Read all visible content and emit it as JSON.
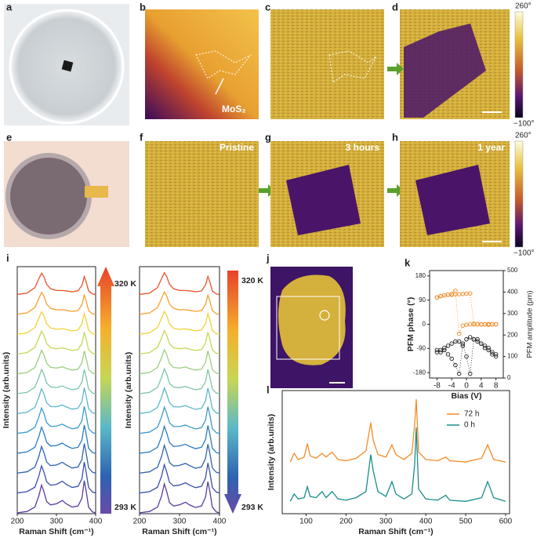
{
  "figure": {
    "panel_labels": [
      "a",
      "b",
      "c",
      "d",
      "e",
      "f",
      "g",
      "h",
      "i",
      "j",
      "k",
      "l"
    ],
    "b_label": "MoS₂",
    "colorbar_d": {
      "max": "260°",
      "min": "−100°"
    },
    "colorbar_h": {
      "max": "260°",
      "min": "−100°"
    },
    "f_label": "Pristine",
    "g_label": "3 hours",
    "h_label": "1 year"
  },
  "chart_data": [
    {
      "type": "line",
      "xlabel": "Raman Shift (cm⁻¹)",
      "ylabel": "Intensity (arb.units)",
      "colorbar": {
        "top": "320 K",
        "bottom": "293 K"
      },
      "x": [
        200,
        225,
        245,
        255,
        262,
        268,
        275,
        285,
        300,
        315,
        325,
        340,
        355,
        365,
        371,
        376,
        382,
        392,
        400
      ],
      "xlim": [
        200,
        400
      ],
      "xticks": [
        200,
        300,
        400
      ],
      "ylim": [
        0,
        11.2
      ],
      "series": [
        {
          "color": "#5a3c9e",
          "values": [
            0.04,
            0.1,
            0.3,
            0.8,
            1.3,
            1.0,
            0.55,
            0.4,
            0.45,
            0.6,
            0.45,
            0.3,
            0.35,
            0.7,
            1.5,
            1.0,
            0.3,
            0.08,
            0.04
          ]
        },
        {
          "color": "#3b4fa8",
          "values": [
            0.94,
            1.0,
            1.2,
            1.7,
            2.17,
            1.89,
            1.45,
            1.29,
            1.33,
            1.47,
            1.33,
            1.19,
            1.24,
            1.58,
            2.34,
            1.86,
            1.19,
            0.98,
            0.94
          ]
        },
        {
          "color": "#2e62b0",
          "values": [
            1.84,
            1.9,
            2.11,
            2.59,
            3.05,
            2.77,
            2.34,
            2.18,
            2.21,
            2.33,
            2.21,
            2.07,
            2.12,
            2.46,
            3.18,
            2.73,
            2.08,
            1.88,
            1.84
          ]
        },
        {
          "color": "#2a7bbf",
          "values": [
            2.74,
            2.8,
            3.01,
            3.49,
            3.92,
            3.66,
            3.24,
            3.07,
            3.09,
            3.2,
            3.08,
            2.96,
            3.01,
            3.33,
            4.02,
            3.59,
            2.97,
            2.77,
            2.74
          ]
        },
        {
          "color": "#3a9bcf",
          "values": [
            3.64,
            3.7,
            3.92,
            4.38,
            4.79,
            4.55,
            4.13,
            3.96,
            3.97,
            4.06,
            3.96,
            3.85,
            3.9,
            4.21,
            4.87,
            4.46,
            3.86,
            3.67,
            3.64
          ]
        },
        {
          "color": "#5bb8c9",
          "values": [
            4.54,
            4.6,
            4.82,
            5.28,
            5.67,
            5.43,
            5.03,
            4.86,
            4.85,
            4.93,
            4.84,
            4.74,
            4.78,
            5.09,
            5.71,
            5.32,
            4.76,
            4.57,
            4.54
          ]
        },
        {
          "color": "#7cc6a8",
          "values": [
            5.44,
            5.5,
            5.73,
            6.17,
            6.54,
            6.32,
            5.92,
            5.75,
            5.72,
            5.79,
            5.71,
            5.62,
            5.67,
            5.96,
            6.54,
            6.18,
            5.65,
            5.47,
            5.44
          ]
        },
        {
          "color": "#9bcf7f",
          "values": [
            6.34,
            6.4,
            6.63,
            7.07,
            7.41,
            7.2,
            6.82,
            6.64,
            6.6,
            6.66,
            6.59,
            6.51,
            6.55,
            6.84,
            7.38,
            7.04,
            6.54,
            6.37,
            6.34
          ]
        },
        {
          "color": "#c6d654",
          "values": [
            7.24,
            7.3,
            7.54,
            7.96,
            8.28,
            8.09,
            7.71,
            7.53,
            7.48,
            7.52,
            7.47,
            7.4,
            7.44,
            7.72,
            8.23,
            7.91,
            7.43,
            7.27,
            7.24
          ]
        },
        {
          "color": "#f0d23a",
          "values": [
            8.14,
            8.2,
            8.44,
            8.86,
            9.15,
            8.98,
            8.61,
            8.42,
            8.36,
            8.39,
            8.35,
            8.29,
            8.33,
            8.6,
            9.07,
            8.77,
            8.32,
            8.16,
            8.14
          ]
        },
        {
          "color": "#f5a02c",
          "values": [
            9.04,
            9.1,
            9.35,
            9.75,
            10.03,
            9.86,
            9.5,
            9.31,
            9.24,
            9.25,
            9.22,
            9.17,
            9.21,
            9.47,
            9.91,
            9.64,
            9.21,
            9.06,
            9.04
          ]
        },
        {
          "color": "#e8532a",
          "values": [
            9.94,
            10.0,
            10.25,
            10.65,
            10.9,
            10.75,
            10.4,
            10.2,
            10.12,
            10.12,
            10.1,
            10.06,
            10.1,
            10.35,
            10.75,
            10.5,
            10.1,
            9.96,
            9.94
          ]
        }
      ]
    },
    {
      "type": "line",
      "xlabel": "Raman Shift (cm⁻¹)",
      "ylabel": "Intensity (arb.units)",
      "colorbar": {
        "top": "320 K",
        "bottom": "293 K"
      },
      "x": [
        200,
        225,
        245,
        255,
        262,
        268,
        275,
        285,
        300,
        315,
        325,
        340,
        355,
        365,
        371,
        376,
        382,
        392,
        400
      ],
      "xlim": [
        200,
        400
      ],
      "xticks": [
        200,
        300,
        400
      ],
      "ylim": [
        0,
        11.2
      ],
      "series": [
        {
          "color": "#5a3c9e",
          "values": [
            0.04,
            0.1,
            0.3,
            0.8,
            1.35,
            1.0,
            0.5,
            0.35,
            0.4,
            0.52,
            0.4,
            0.28,
            0.35,
            0.75,
            1.45,
            1.0,
            0.3,
            0.08,
            0.04
          ]
        },
        {
          "color": "#3b4fa8",
          "values": [
            0.94,
            1.0,
            1.2,
            1.7,
            2.22,
            1.89,
            1.42,
            1.26,
            1.3,
            1.4,
            1.3,
            1.18,
            1.24,
            1.62,
            2.3,
            1.86,
            1.19,
            0.98,
            0.94
          ]
        },
        {
          "color": "#2e62b0",
          "values": [
            1.84,
            1.9,
            2.11,
            2.59,
            3.1,
            2.77,
            2.32,
            2.16,
            2.19,
            2.28,
            2.18,
            2.06,
            2.12,
            2.5,
            3.15,
            2.73,
            2.08,
            1.88,
            1.84
          ]
        },
        {
          "color": "#2a7bbf",
          "values": [
            2.74,
            2.8,
            3.01,
            3.49,
            3.96,
            3.66,
            3.22,
            3.05,
            3.07,
            3.15,
            3.05,
            2.95,
            3.01,
            3.36,
            4.0,
            3.59,
            2.97,
            2.77,
            2.74
          ]
        },
        {
          "color": "#3a9bcf",
          "values": [
            3.64,
            3.7,
            3.92,
            4.38,
            4.83,
            4.55,
            4.12,
            3.95,
            3.95,
            4.02,
            3.94,
            3.84,
            3.9,
            4.24,
            4.85,
            4.46,
            3.86,
            3.67,
            3.64
          ]
        },
        {
          "color": "#5bb8c9",
          "values": [
            4.54,
            4.6,
            4.82,
            5.28,
            5.7,
            5.43,
            5.02,
            4.85,
            4.84,
            4.9,
            4.82,
            4.73,
            4.78,
            5.12,
            5.7,
            5.32,
            4.76,
            4.57,
            4.54
          ]
        },
        {
          "color": "#7cc6a8",
          "values": [
            5.44,
            5.5,
            5.73,
            6.17,
            6.57,
            6.32,
            5.91,
            5.74,
            5.71,
            5.77,
            5.7,
            5.62,
            5.67,
            5.99,
            6.54,
            6.18,
            5.65,
            5.47,
            5.44
          ]
        },
        {
          "color": "#9bcf7f",
          "values": [
            6.34,
            6.4,
            6.63,
            7.07,
            7.44,
            7.2,
            6.81,
            6.63,
            6.6,
            6.65,
            6.58,
            6.51,
            6.55,
            6.86,
            7.38,
            7.04,
            6.54,
            6.37,
            6.34
          ]
        },
        {
          "color": "#c6d654",
          "values": [
            7.24,
            7.3,
            7.54,
            7.96,
            8.3,
            8.09,
            7.7,
            7.52,
            7.48,
            7.51,
            7.46,
            7.4,
            7.44,
            7.74,
            8.23,
            7.91,
            7.43,
            7.27,
            7.24
          ]
        },
        {
          "color": "#f0d23a",
          "values": [
            8.14,
            8.2,
            8.44,
            8.86,
            9.17,
            8.98,
            8.6,
            8.41,
            8.36,
            8.38,
            8.34,
            8.29,
            8.33,
            8.62,
            9.07,
            8.77,
            8.32,
            8.16,
            8.14
          ]
        },
        {
          "color": "#f5a02c",
          "values": [
            9.04,
            9.1,
            9.35,
            9.75,
            10.05,
            9.86,
            9.5,
            9.31,
            9.24,
            9.25,
            9.22,
            9.17,
            9.21,
            9.49,
            9.91,
            9.64,
            9.21,
            9.06,
            9.04
          ]
        },
        {
          "color": "#e8532a",
          "values": [
            9.94,
            10.0,
            10.25,
            10.65,
            10.92,
            10.75,
            10.4,
            10.2,
            10.12,
            10.12,
            10.1,
            10.06,
            10.1,
            10.37,
            10.75,
            10.5,
            10.1,
            9.96,
            9.94
          ]
        }
      ]
    },
    {
      "type": "scatter",
      "xlabel": "Bias (V)",
      "ylabel": "PFM phase (°)",
      "y2label": "PFM amplitude (pm)",
      "xlim": [
        -10,
        10
      ],
      "xticks": [
        -8,
        -4,
        0,
        4,
        8
      ],
      "ylim": [
        -200,
        200
      ],
      "yticks": [
        -180,
        -90,
        0,
        90,
        180
      ],
      "y2lim": [
        0,
        500
      ],
      "y2ticks": [
        0,
        100,
        200,
        300,
        400,
        500
      ],
      "series": [
        {
          "color": "#f08a24",
          "x": [
            -8,
            -7,
            -6,
            -5,
            -4,
            -3,
            -2,
            -1,
            0,
            1,
            2,
            3,
            4,
            5,
            6,
            7,
            8,
            8,
            7,
            6,
            5,
            4,
            3,
            2,
            1,
            0,
            -1,
            -2,
            -3,
            -4,
            -5,
            -6,
            -7,
            -8
          ],
          "values": [
            100,
            105,
            108,
            110,
            110,
            112,
            112,
            113,
            114,
            115,
            2,
            0,
            -1,
            0,
            1,
            0,
            0,
            0,
            0,
            -2,
            0,
            0,
            0,
            0,
            0,
            -2,
            -5,
            -35,
            125,
            112,
            110,
            108,
            105,
            100
          ]
        },
        {
          "color": "#222222",
          "axis": "y2",
          "x": [
            -8,
            -7,
            -6,
            -5,
            -4,
            -3,
            -2,
            -1,
            0,
            1,
            2,
            3,
            4,
            5,
            6,
            7,
            8,
            8,
            7,
            6,
            5,
            4,
            3,
            2,
            1,
            0,
            -1,
            -2,
            -3,
            -4,
            -5,
            -6,
            -7,
            -8
          ],
          "values": [
            130,
            120,
            130,
            110,
            90,
            60,
            20,
            150,
            180,
            190,
            180,
            170,
            160,
            140,
            130,
            110,
            100,
            110,
            120,
            140,
            150,
            160,
            180,
            180,
            20,
            100,
            160,
            170,
            170,
            160,
            150,
            140,
            130,
            120
          ]
        }
      ]
    },
    {
      "type": "line",
      "xlabel": "Raman Shift (cm⁻¹)",
      "ylabel": "Intensity (arb.units)",
      "legend": "upper right",
      "x": [
        60,
        70,
        80,
        95,
        103,
        110,
        125,
        140,
        150,
        165,
        180,
        200,
        225,
        250,
        262,
        268,
        280,
        300,
        315,
        325,
        345,
        365,
        372,
        376,
        382,
        400,
        430,
        450,
        460,
        500,
        540,
        555,
        560,
        570,
        600
      ],
      "xlim": [
        40,
        610
      ],
      "xticks": [
        100,
        200,
        300,
        400,
        500,
        600
      ],
      "ylim": [
        0,
        10
      ],
      "series": [
        {
          "name": "72 h",
          "color": "#f28c28",
          "values": [
            4.2,
            4.9,
            4.4,
            4.6,
            5.7,
            4.7,
            4.5,
            4.9,
            4.6,
            5.0,
            4.4,
            4.3,
            4.5,
            5.1,
            7.4,
            6.0,
            4.8,
            4.6,
            5.6,
            4.8,
            4.4,
            4.9,
            7.2,
            9.3,
            5.0,
            4.4,
            4.3,
            4.6,
            4.3,
            4.2,
            4.5,
            5.6,
            5.2,
            4.4,
            4.2
          ]
        },
        {
          "name": "0 h",
          "color": "#1a8c8c",
          "values": [
            1.0,
            1.6,
            1.2,
            1.3,
            2.2,
            1.4,
            1.3,
            1.8,
            1.3,
            1.8,
            1.2,
            1.1,
            1.3,
            1.8,
            4.8,
            3.5,
            1.8,
            1.4,
            2.6,
            1.6,
            1.2,
            1.6,
            4.0,
            7.0,
            2.0,
            1.2,
            1.1,
            1.5,
            1.1,
            1.0,
            1.3,
            2.6,
            2.2,
            1.3,
            1.0
          ]
        }
      ]
    }
  ]
}
